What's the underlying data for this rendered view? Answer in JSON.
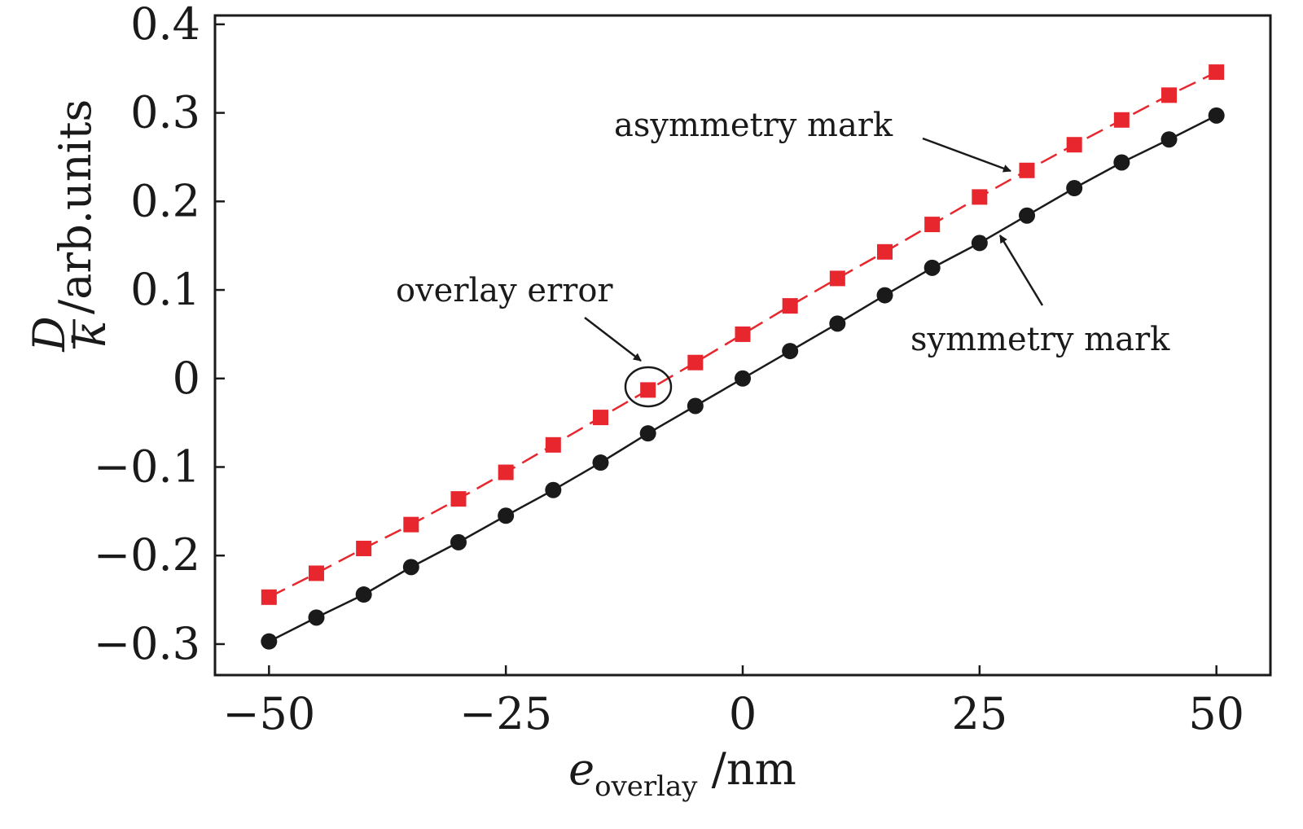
{
  "chart_data": {
    "type": "line",
    "x": [
      -50,
      -45,
      -40,
      -35,
      -30,
      -25,
      -20,
      -15,
      -10,
      -5,
      0,
      5,
      10,
      15,
      20,
      25,
      30,
      35,
      40,
      45,
      50
    ],
    "series": [
      {
        "name": "asymmetry mark",
        "values": [
          -0.247,
          -0.22,
          -0.192,
          -0.165,
          -0.136,
          -0.106,
          -0.075,
          -0.044,
          -0.013,
          0.018,
          0.05,
          0.082,
          0.113,
          0.143,
          0.174,
          0.205,
          0.235,
          0.264,
          0.292,
          0.32,
          0.346
        ],
        "color": "#e8262d",
        "line_style": "dashed",
        "marker": "square"
      },
      {
        "name": "symmetry mark",
        "values": [
          -0.297,
          -0.27,
          -0.244,
          -0.213,
          -0.185,
          -0.155,
          -0.126,
          -0.095,
          -0.062,
          -0.031,
          0.0,
          0.031,
          0.062,
          0.094,
          0.125,
          0.153,
          0.184,
          0.215,
          0.244,
          0.27,
          0.297
        ],
        "color": "#1a1a1a",
        "line_style": "solid",
        "marker": "circle"
      }
    ],
    "xlim": [
      -55.7,
      55.7
    ],
    "ylim": [
      -0.335,
      0.41
    ],
    "xticks": [
      -50,
      -25,
      0,
      25,
      50
    ],
    "yticks": [
      -0.3,
      -0.2,
      -0.1,
      0,
      0.1,
      0.2,
      0.3,
      0.4
    ],
    "xtick_labels": [
      "−50",
      "−25",
      "0",
      "25",
      "50"
    ],
    "ytick_labels": [
      "−0.3",
      "−0.2",
      "−0.1",
      "0",
      "0.1",
      "0.2",
      "0.3",
      "0.4"
    ],
    "xlabel": {
      "main": "e",
      "sub": "overlay",
      "unit": " /nm"
    },
    "ylabel": {
      "numerator": "D",
      "denominator": "k",
      "unit": "/arb.units"
    },
    "grid": false,
    "legend": "none",
    "annotations": {
      "asymmetry": {
        "text": "asymmetry mark"
      },
      "symmetry": {
        "text": "symmetry mark"
      },
      "overlay_error": {
        "text": "overlay error"
      }
    }
  }
}
